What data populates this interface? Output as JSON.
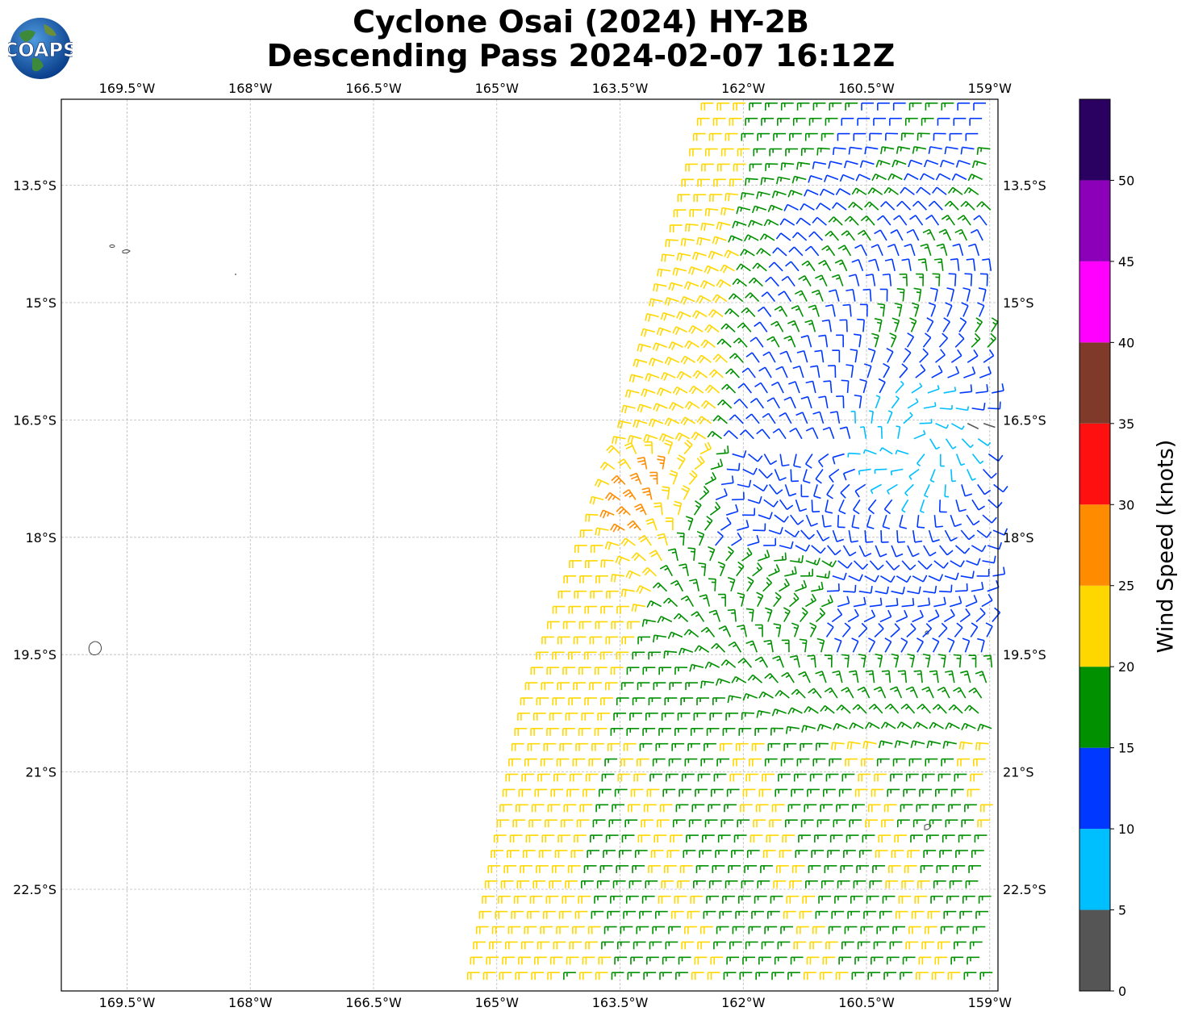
{
  "title": {
    "line1": "Cyclone Osai (2024) HY-2B",
    "line2": "Descending Pass 2024-02-07 16:12Z"
  },
  "logo": {
    "text": "COAPS",
    "icon": "globe-icon"
  },
  "map": {
    "lon_range": [
      -170.3,
      -158.9
    ],
    "lat_range": [
      -23.8,
      -12.4
    ],
    "lon_ticks": [
      "169.5°W",
      "168°W",
      "166.5°W",
      "165°W",
      "163.5°W",
      "162°W",
      "160.5°W",
      "159°W"
    ],
    "lon_tick_values": [
      -169.5,
      -168,
      -166.5,
      -165,
      -163.5,
      -162,
      -160.5,
      -159
    ],
    "lat_ticks": [
      "13.5°S",
      "15°S",
      "16.5°S",
      "18°S",
      "19.5°S",
      "21°S",
      "22.5°S"
    ],
    "lat_tick_values": [
      -13.5,
      -15,
      -16.5,
      -18,
      -19.5,
      -21,
      -22.5
    ],
    "grid": true,
    "gridline_style": "dashed light gray",
    "land_outline_color": "#444444"
  },
  "colorbar": {
    "label": "Wind Speed (knots)",
    "tick_labels": [
      "0",
      "5",
      "10",
      "15",
      "20",
      "25",
      "30",
      "35",
      "40",
      "45",
      "50"
    ],
    "bins": [
      {
        "from": 0,
        "to": 5,
        "color": "#555555"
      },
      {
        "from": 5,
        "to": 10,
        "color": "#00bfff"
      },
      {
        "from": 10,
        "to": 15,
        "color": "#0038ff"
      },
      {
        "from": 15,
        "to": 20,
        "color": "#009000"
      },
      {
        "from": 20,
        "to": 25,
        "color": "#ffd700"
      },
      {
        "from": 25,
        "to": 30,
        "color": "#ff8c00"
      },
      {
        "from": 30,
        "to": 35,
        "color": "#ff1010"
      },
      {
        "from": 35,
        "to": 40,
        "color": "#7f3a2a"
      },
      {
        "from": 40,
        "to": 45,
        "color": "#ff00ff"
      },
      {
        "from": 45,
        "to": 50,
        "color": "#8b00b8"
      },
      {
        "from": 50,
        "to": 55,
        "color": "#2a0060"
      }
    ]
  },
  "chart_data": {
    "type": "scatter",
    "description_kind": "wind barbs (HY-2B scatterometer swath)",
    "swath_edge_west": [
      [
        -162.4,
        -12.4
      ],
      [
        -163.4,
        -16.5
      ],
      [
        -164.6,
        -20.0
      ],
      [
        -165.3,
        -23.8
      ]
    ],
    "swath_east_edge_lon": -158.9,
    "wind_regions": [
      {
        "name": "yellow_west_band",
        "speed_kt": 22
      },
      {
        "name": "orange_patch",
        "speed_kt": 26,
        "center": [
          -163.1,
          -17.6
        ]
      },
      {
        "name": "green_band",
        "speed_kt": 17
      },
      {
        "name": "blue_core",
        "speed_kt": 12
      },
      {
        "name": "cyan_center",
        "speed_kt": 8,
        "center": [
          -159.9,
          -16.8
        ]
      },
      {
        "name": "gray_calm",
        "speed_kt": 3,
        "center": [
          -159.2,
          -16.5
        ]
      }
    ]
  }
}
